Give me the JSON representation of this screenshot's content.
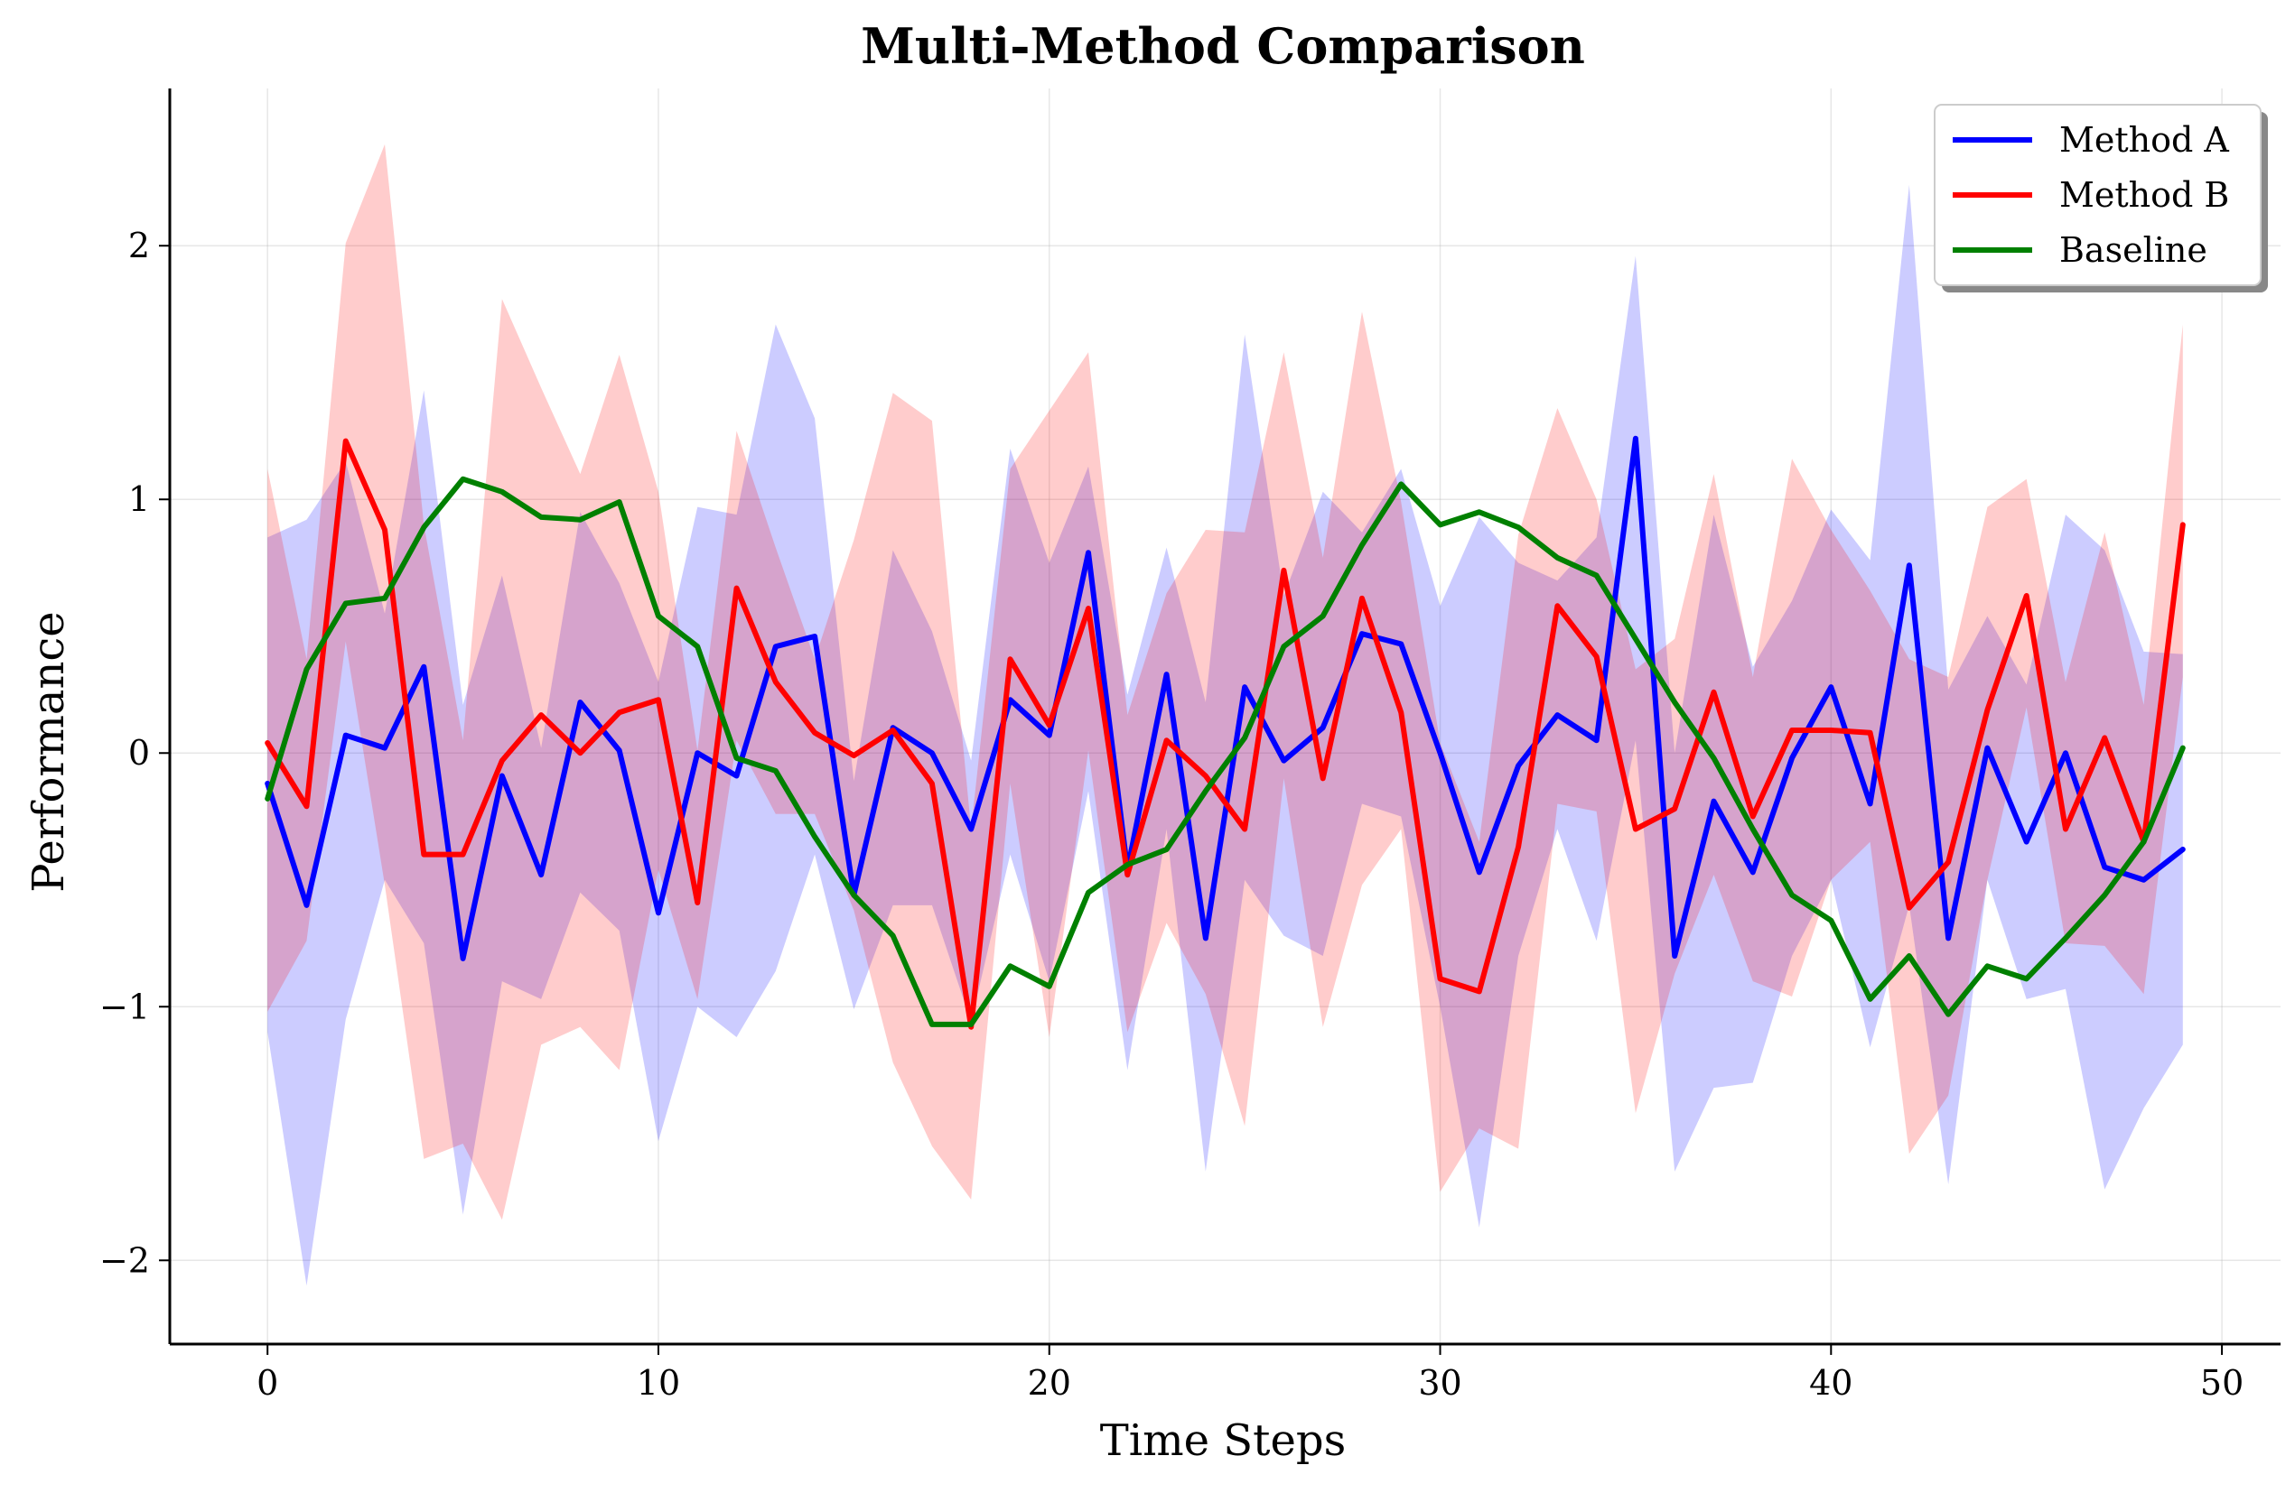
{
  "chart_data": {
    "type": "line",
    "title": "Multi-Method Comparison",
    "xlabel": "Time Steps",
    "ylabel": "Performance",
    "xlim": [
      -2.5,
      51.5
    ],
    "ylim": [
      -2.33,
      2.62
    ],
    "xticks": [
      0,
      10,
      20,
      30,
      40,
      50
    ],
    "yticks": [
      -2,
      -1,
      0,
      1,
      2
    ],
    "ytick_labels": [
      "−2",
      "−1",
      "0",
      "1",
      "2"
    ],
    "grid": true,
    "legend_position": "top-right",
    "x": [
      0,
      1,
      2,
      3,
      4,
      5,
      6,
      7,
      8,
      9,
      10,
      11,
      12,
      13,
      14,
      15,
      16,
      17,
      18,
      19,
      20,
      21,
      22,
      23,
      24,
      25,
      26,
      27,
      28,
      29,
      30,
      31,
      32,
      33,
      34,
      35,
      36,
      37,
      38,
      39,
      40,
      41,
      42,
      43,
      44,
      45,
      46,
      47,
      48,
      49
    ],
    "series": [
      {
        "name": "Method A",
        "color": "#0000ff",
        "band_color": "#ccccff",
        "values": [
          -0.12,
          -0.6,
          0.07,
          0.02,
          0.34,
          -0.81,
          -0.09,
          -0.48,
          0.2,
          0.01,
          -0.63,
          0.0,
          -0.09,
          0.42,
          0.46,
          -0.56,
          0.1,
          0.0,
          -0.3,
          0.21,
          0.07,
          0.79,
          -0.46,
          0.31,
          -0.73,
          0.26,
          -0.03,
          0.1,
          0.47,
          0.43,
          0.0,
          -0.47,
          -0.05,
          0.15,
          0.05,
          1.24,
          -0.8,
          -0.19,
          -0.47,
          -0.02,
          0.26,
          -0.2,
          0.74,
          -0.73,
          0.02,
          -0.35,
          0.0,
          -0.45,
          -0.5,
          -0.38
        ],
        "lower": [
          -1.1,
          -2.1,
          -1.05,
          -0.5,
          -0.75,
          -1.82,
          -0.9,
          -0.97,
          -0.55,
          -0.7,
          -1.53,
          -1.0,
          -1.12,
          -0.86,
          -0.4,
          -1.01,
          -0.6,
          -0.6,
          -1.06,
          -0.4,
          -0.9,
          -0.15,
          -1.25,
          -0.3,
          -1.65,
          -0.5,
          -0.72,
          -0.8,
          -0.2,
          -0.25,
          -1.0,
          -1.87,
          -0.8,
          -0.3,
          -0.74,
          0.05,
          -1.65,
          -1.32,
          -1.3,
          -0.8,
          -0.5,
          -1.16,
          -0.6,
          -1.7,
          -0.5,
          -0.97,
          -0.93,
          -1.72,
          -1.4,
          -1.15
        ],
        "upper": [
          0.85,
          0.92,
          1.15,
          0.55,
          1.43,
          0.19,
          0.7,
          0.02,
          0.95,
          0.67,
          0.28,
          0.97,
          0.94,
          1.69,
          1.32,
          -0.11,
          0.8,
          0.48,
          -0.03,
          1.2,
          0.75,
          1.13,
          0.23,
          0.81,
          0.2,
          1.65,
          0.62,
          1.03,
          0.87,
          1.12,
          0.58,
          0.93,
          0.75,
          0.68,
          0.85,
          1.96,
          0.0,
          0.94,
          0.34,
          0.6,
          0.96,
          0.76,
          2.24,
          0.25,
          0.54,
          0.27,
          0.94,
          0.8,
          0.4,
          0.39
        ]
      },
      {
        "name": "Method B",
        "color": "#ff0000",
        "band_color": "#ffcccc",
        "values": [
          0.04,
          -0.21,
          1.23,
          0.88,
          -0.4,
          -0.4,
          -0.03,
          0.15,
          0.0,
          0.16,
          0.21,
          -0.59,
          0.65,
          0.28,
          0.08,
          -0.01,
          0.09,
          -0.12,
          -1.08,
          0.37,
          0.11,
          0.57,
          -0.48,
          0.05,
          -0.09,
          -0.3,
          0.72,
          -0.1,
          0.61,
          0.16,
          -0.89,
          -0.94,
          -0.37,
          0.58,
          0.38,
          -0.3,
          -0.22,
          0.24,
          -0.25,
          0.09,
          0.09,
          0.08,
          -0.61,
          -0.43,
          0.17,
          0.62,
          -0.3,
          0.06,
          -0.35,
          0.9
        ],
        "lower": [
          -1.02,
          -0.74,
          0.44,
          -0.52,
          -1.6,
          -1.54,
          -1.84,
          -1.15,
          -1.08,
          -1.25,
          -0.46,
          -0.97,
          0.05,
          -0.24,
          -0.24,
          -0.62,
          -1.22,
          -1.55,
          -1.76,
          -0.12,
          -1.12,
          0.01,
          -1.1,
          -0.67,
          -0.95,
          -1.47,
          -0.1,
          -1.08,
          -0.52,
          -0.3,
          -1.73,
          -1.48,
          -1.56,
          -0.2,
          -0.23,
          -1.42,
          -0.87,
          -0.48,
          -0.9,
          -0.96,
          -0.5,
          -0.35,
          -1.58,
          -1.35,
          -0.5,
          0.18,
          -0.75,
          -0.76,
          -0.95,
          0.3
        ],
        "upper": [
          1.12,
          0.37,
          2.01,
          2.4,
          0.9,
          0.05,
          1.79,
          1.44,
          1.1,
          1.57,
          1.03,
          0.01,
          1.27,
          0.81,
          0.37,
          0.84,
          1.42,
          1.31,
          -0.3,
          1.12,
          1.35,
          1.58,
          0.15,
          0.63,
          0.88,
          0.87,
          1.58,
          0.77,
          1.74,
          0.99,
          0.04,
          -0.35,
          0.86,
          1.36,
          1.0,
          0.33,
          0.45,
          1.1,
          0.3,
          1.16,
          0.88,
          0.64,
          0.37,
          0.3,
          0.97,
          1.08,
          0.28,
          0.87,
          0.19,
          1.69
        ]
      },
      {
        "name": "Baseline",
        "color": "#008000",
        "values": [
          -0.18,
          0.33,
          0.59,
          0.61,
          0.89,
          1.08,
          1.03,
          0.93,
          0.92,
          0.99,
          0.54,
          0.42,
          -0.02,
          -0.07,
          -0.33,
          -0.56,
          -0.72,
          -1.07,
          -1.07,
          -0.84,
          -0.92,
          -0.55,
          -0.44,
          -0.38,
          -0.15,
          0.06,
          0.42,
          0.54,
          0.82,
          1.06,
          0.9,
          0.95,
          0.89,
          0.77,
          0.7,
          0.45,
          0.2,
          -0.02,
          -0.3,
          -0.56,
          -0.66,
          -0.97,
          -0.8,
          -1.03,
          -0.84,
          -0.89,
          -0.73,
          -0.56,
          -0.35,
          0.02
        ]
      }
    ]
  }
}
